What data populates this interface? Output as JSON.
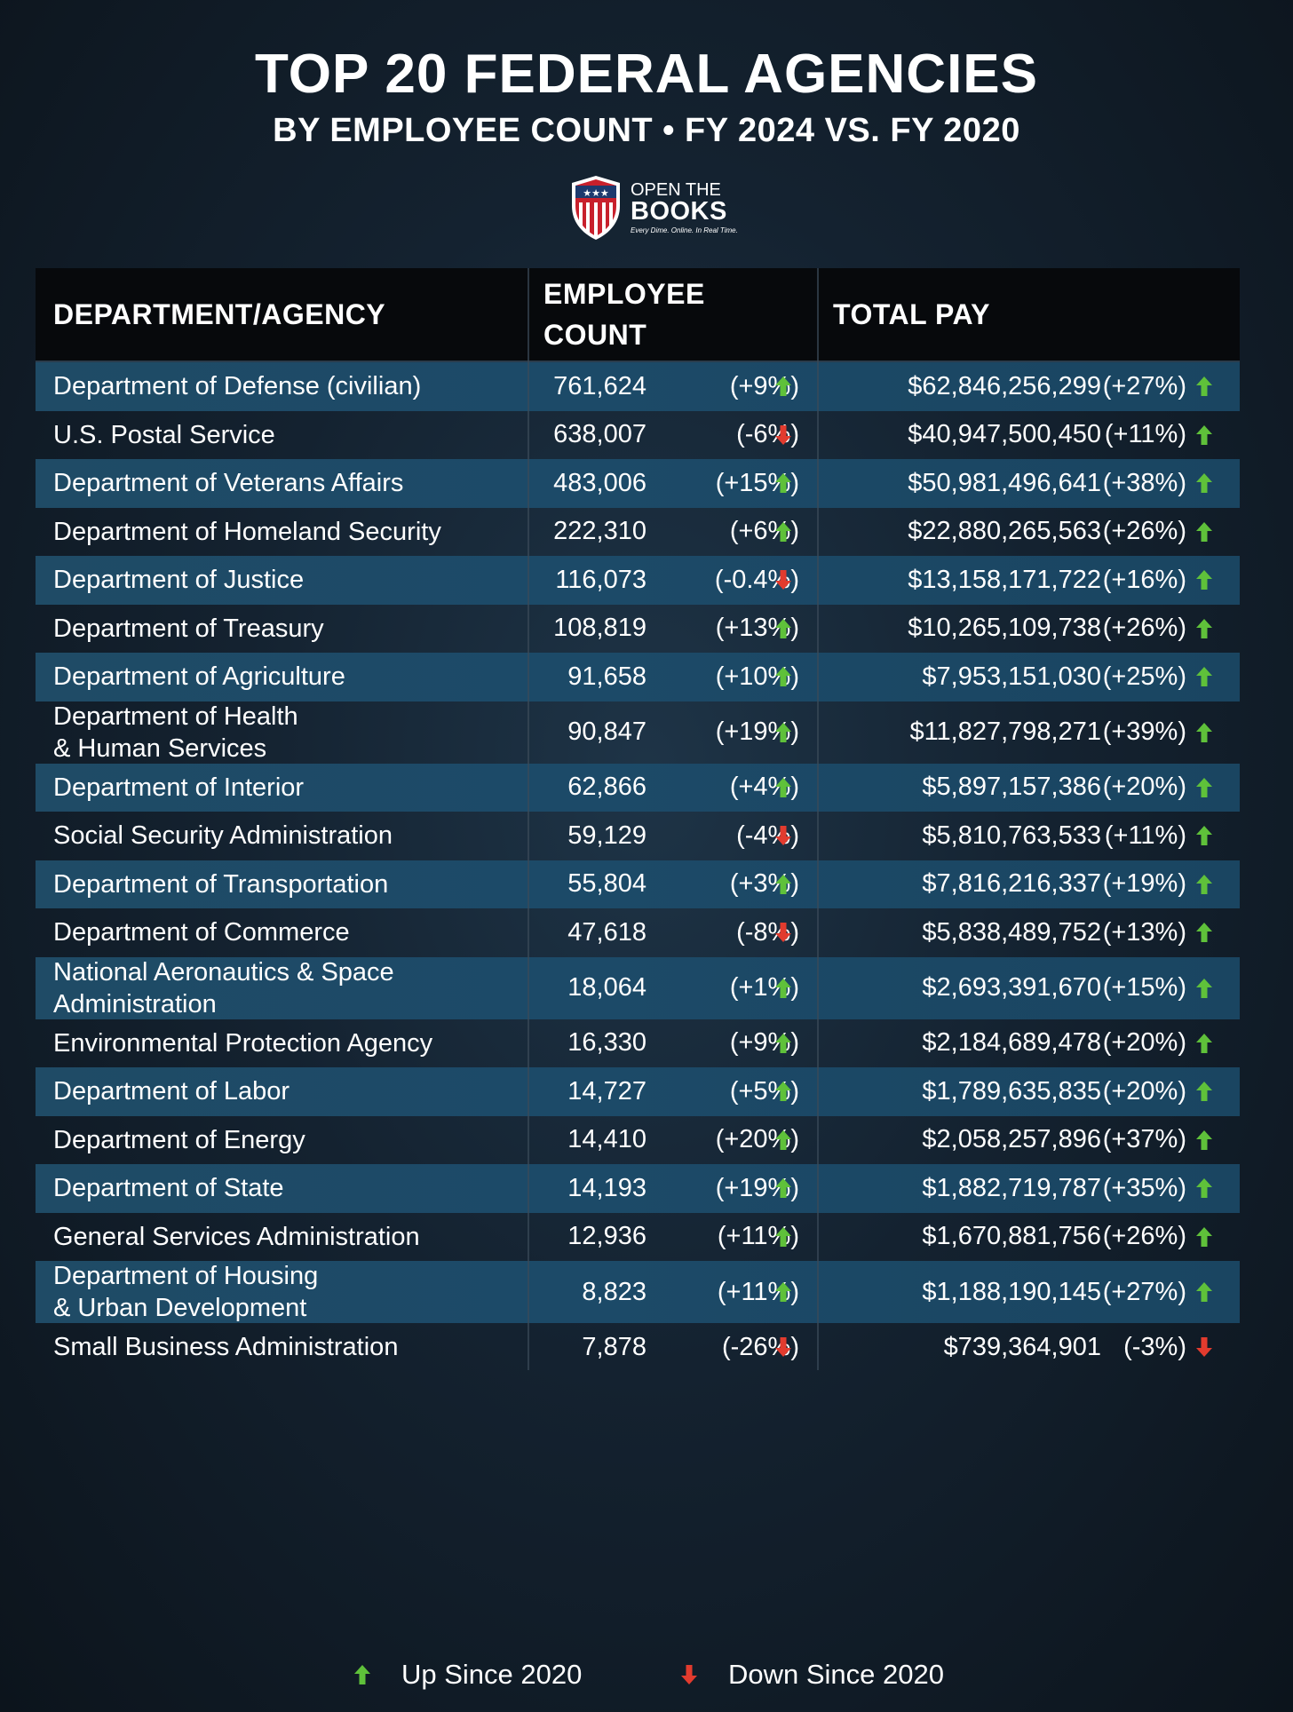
{
  "header": {
    "title": "TOP 20 FEDERAL AGENCIES",
    "subtitle": "BY EMPLOYEE COUNT • FY 2024 VS. FY 2020",
    "logo": {
      "line1": "OPEN THE",
      "line2": "BOOKS",
      "tagline": "Every Dime. Online. In Real Time."
    }
  },
  "colors": {
    "up": "#5fc13a",
    "down": "#e23b2e",
    "row_shade": "#1c4a68",
    "header_bg": "#07090c"
  },
  "chart_data": {
    "type": "table",
    "title": "TOP 20 FEDERAL AGENCIES",
    "subtitle": "BY EMPLOYEE COUNT • FY 2024 VS. FY 2020",
    "columns": [
      "DEPARTMENT/AGENCY",
      "EMPLOYEE COUNT",
      "TOTAL PAY"
    ],
    "column_lines": {
      "employee": [
        "EMPLOYEE",
        "COUNT"
      ]
    },
    "rows": [
      {
        "name": [
          "Department of Defense (civilian)"
        ],
        "count": "761,624",
        "count_change": "(+9%)",
        "count_dir": "up",
        "pay": "$62,846,256,299",
        "pay_change": "(+27%)",
        "pay_dir": "up"
      },
      {
        "name": [
          "U.S. Postal Service"
        ],
        "count": "638,007",
        "count_change": "(-6%)",
        "count_dir": "down",
        "pay": "$40,947,500,450",
        "pay_change": "(+11%)",
        "pay_dir": "up"
      },
      {
        "name": [
          "Department of Veterans Affairs"
        ],
        "count": "483,006",
        "count_change": "(+15%)",
        "count_dir": "up",
        "pay": "$50,981,496,641",
        "pay_change": "(+38%)",
        "pay_dir": "up"
      },
      {
        "name": [
          "Department of Homeland Security"
        ],
        "count": "222,310",
        "count_change": "(+6%)",
        "count_dir": "up",
        "pay": "$22,880,265,563",
        "pay_change": "(+26%)",
        "pay_dir": "up"
      },
      {
        "name": [
          "Department of Justice"
        ],
        "count": "116,073",
        "count_change": "(-0.4%)",
        "count_dir": "down",
        "pay": "$13,158,171,722",
        "pay_change": "(+16%)",
        "pay_dir": "up"
      },
      {
        "name": [
          "Department of Treasury"
        ],
        "count": "108,819",
        "count_change": "(+13%)",
        "count_dir": "up",
        "pay": "$10,265,109,738",
        "pay_change": "(+26%)",
        "pay_dir": "up"
      },
      {
        "name": [
          "Department of Agriculture"
        ],
        "count": "91,658",
        "count_change": "(+10%)",
        "count_dir": "up",
        "pay": "$7,953,151,030",
        "pay_change": "(+25%)",
        "pay_dir": "up"
      },
      {
        "name": [
          "Department of Health",
          "& Human Services"
        ],
        "count": "90,847",
        "count_change": "(+19%)",
        "count_dir": "up",
        "pay": "$11,827,798,271",
        "pay_change": "(+39%)",
        "pay_dir": "up"
      },
      {
        "name": [
          "Department of Interior"
        ],
        "count": "62,866",
        "count_change": "(+4%)",
        "count_dir": "up",
        "pay": "$5,897,157,386",
        "pay_change": "(+20%)",
        "pay_dir": "up"
      },
      {
        "name": [
          "Social Security Administration"
        ],
        "count": "59,129",
        "count_change": "(-4%)",
        "count_dir": "down",
        "pay": "$5,810,763,533",
        "pay_change": "(+11%)",
        "pay_dir": "up"
      },
      {
        "name": [
          "Department of Transportation"
        ],
        "count": "55,804",
        "count_change": "(+3%)",
        "count_dir": "up",
        "pay": "$7,816,216,337",
        "pay_change": "(+19%)",
        "pay_dir": "up"
      },
      {
        "name": [
          "Department of Commerce"
        ],
        "count": "47,618",
        "count_change": "(-8%)",
        "count_dir": "down",
        "pay": "$5,838,489,752",
        "pay_change": "(+13%)",
        "pay_dir": "up"
      },
      {
        "name": [
          "National Aeronautics & Space",
          "Administration"
        ],
        "count": "18,064",
        "count_change": "(+1%)",
        "count_dir": "up",
        "pay": "$2,693,391,670",
        "pay_change": "(+15%)",
        "pay_dir": "up"
      },
      {
        "name": [
          "Environmental Protection Agency"
        ],
        "count": "16,330",
        "count_change": "(+9%)",
        "count_dir": "up",
        "pay": "$2,184,689,478",
        "pay_change": "(+20%)",
        "pay_dir": "up"
      },
      {
        "name": [
          "Department of Labor"
        ],
        "count": "14,727",
        "count_change": "(+5%)",
        "count_dir": "up",
        "pay": "$1,789,635,835",
        "pay_change": "(+20%)",
        "pay_dir": "up"
      },
      {
        "name": [
          "Department of Energy"
        ],
        "count": "14,410",
        "count_change": "(+20%)",
        "count_dir": "up",
        "pay": "$2,058,257,896",
        "pay_change": "(+37%)",
        "pay_dir": "up"
      },
      {
        "name": [
          "Department of State"
        ],
        "count": "14,193",
        "count_change": "(+19%)",
        "count_dir": "up",
        "pay": "$1,882,719,787",
        "pay_change": "(+35%)",
        "pay_dir": "up"
      },
      {
        "name": [
          "General Services Administration"
        ],
        "count": "12,936",
        "count_change": "(+11%)",
        "count_dir": "up",
        "pay": "$1,670,881,756",
        "pay_change": "(+26%)",
        "pay_dir": "up"
      },
      {
        "name": [
          "Department of Housing",
          "& Urban Development"
        ],
        "count": "8,823",
        "count_change": "(+11%)",
        "count_dir": "up",
        "pay": "$1,188,190,145",
        "pay_change": "(+27%)",
        "pay_dir": "up"
      },
      {
        "name": [
          "Small Business Administration"
        ],
        "count": "7,878",
        "count_change": "(-26%)",
        "count_dir": "down",
        "pay": "$739,364,901",
        "pay_change": "(-3%)",
        "pay_dir": "down"
      }
    ]
  },
  "legend": {
    "up_label": "Up Since 2020",
    "down_label": "Down Since 2020"
  }
}
